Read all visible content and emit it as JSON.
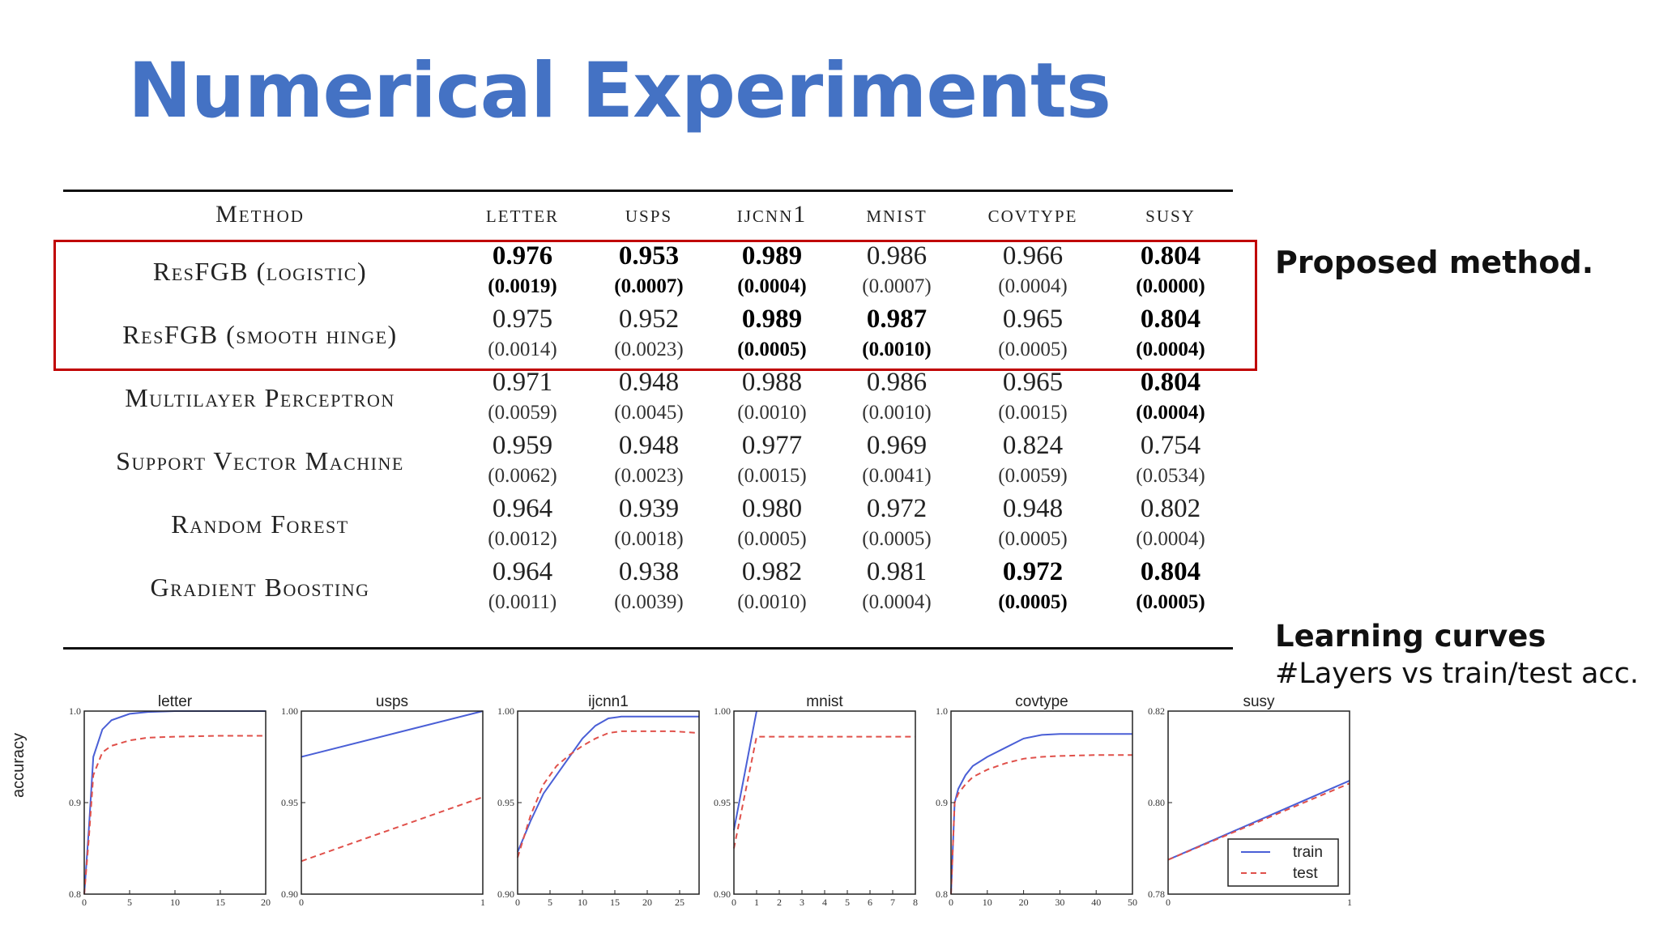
{
  "title": "Numerical Experiments",
  "table": {
    "columns": [
      "Method",
      "letter",
      "usps",
      "ijcnn1",
      "mnist",
      "covtype",
      "susy"
    ],
    "rows": [
      {
        "method": "ResFGB (logistic)",
        "cells": [
          {
            "mean": "0.976",
            "std": "(0.0019)",
            "bold": true
          },
          {
            "mean": "0.953",
            "std": "(0.0007)",
            "bold": true
          },
          {
            "mean": "0.989",
            "std": "(0.0004)",
            "bold": true
          },
          {
            "mean": "0.986",
            "std": "(0.0007)",
            "bold": false
          },
          {
            "mean": "0.966",
            "std": "(0.0004)",
            "bold": false
          },
          {
            "mean": "0.804",
            "std": "(0.0000)",
            "bold": true
          }
        ]
      },
      {
        "method": "ResFGB (smooth hinge)",
        "cells": [
          {
            "mean": "0.975",
            "std": "(0.0014)",
            "bold": false
          },
          {
            "mean": "0.952",
            "std": "(0.0023)",
            "bold": false
          },
          {
            "mean": "0.989",
            "std": "(0.0005)",
            "bold": true
          },
          {
            "mean": "0.987",
            "std": "(0.0010)",
            "bold": true
          },
          {
            "mean": "0.965",
            "std": "(0.0005)",
            "bold": false
          },
          {
            "mean": "0.804",
            "std": "(0.0004)",
            "bold": true
          }
        ]
      },
      {
        "method": "Multilayer Perceptron",
        "cells": [
          {
            "mean": "0.971",
            "std": "(0.0059)",
            "bold": false
          },
          {
            "mean": "0.948",
            "std": "(0.0045)",
            "bold": false
          },
          {
            "mean": "0.988",
            "std": "(0.0010)",
            "bold": false
          },
          {
            "mean": "0.986",
            "std": "(0.0010)",
            "bold": false
          },
          {
            "mean": "0.965",
            "std": "(0.0015)",
            "bold": false
          },
          {
            "mean": "0.804",
            "std": "(0.0004)",
            "bold": true
          }
        ]
      },
      {
        "method": "Support Vector Machine",
        "cells": [
          {
            "mean": "0.959",
            "std": "(0.0062)",
            "bold": false
          },
          {
            "mean": "0.948",
            "std": "(0.0023)",
            "bold": false
          },
          {
            "mean": "0.977",
            "std": "(0.0015)",
            "bold": false
          },
          {
            "mean": "0.969",
            "std": "(0.0041)",
            "bold": false
          },
          {
            "mean": "0.824",
            "std": "(0.0059)",
            "bold": false
          },
          {
            "mean": "0.754",
            "std": "(0.0534)",
            "bold": false
          }
        ]
      },
      {
        "method": "Random Forest",
        "cells": [
          {
            "mean": "0.964",
            "std": "(0.0012)",
            "bold": false
          },
          {
            "mean": "0.939",
            "std": "(0.0018)",
            "bold": false
          },
          {
            "mean": "0.980",
            "std": "(0.0005)",
            "bold": false
          },
          {
            "mean": "0.972",
            "std": "(0.0005)",
            "bold": false
          },
          {
            "mean": "0.948",
            "std": "(0.0005)",
            "bold": false
          },
          {
            "mean": "0.802",
            "std": "(0.0004)",
            "bold": false
          }
        ]
      },
      {
        "method": "Gradient Boosting",
        "cells": [
          {
            "mean": "0.964",
            "std": "(0.0011)",
            "bold": false
          },
          {
            "mean": "0.938",
            "std": "(0.0039)",
            "bold": false
          },
          {
            "mean": "0.982",
            "std": "(0.0010)",
            "bold": false
          },
          {
            "mean": "0.981",
            "std": "(0.0004)",
            "bold": false
          },
          {
            "mean": "0.972",
            "std": "(0.0005)",
            "bold": true
          },
          {
            "mean": "0.804",
            "std": "(0.0005)",
            "bold": true
          }
        ]
      }
    ]
  },
  "notes": {
    "proposed": "Proposed method.",
    "curves_title": "Learning curves",
    "curves_sub": "#Layers vs train/test acc."
  },
  "colors": {
    "title": "#4472c4",
    "highlight": "#c00000",
    "train": "#4a5fd6",
    "test": "#e0504a"
  },
  "chart_data": [
    {
      "type": "line",
      "title": "letter",
      "ylabel": "accuracy",
      "xlim": [
        0,
        20
      ],
      "ylim": [
        0.8,
        1.0
      ],
      "xticks": [
        "0",
        "5",
        "10",
        "15",
        "20"
      ],
      "yticks": [
        "0.8",
        "0.9",
        "1.0"
      ],
      "series": [
        {
          "name": "train",
          "x": [
            0,
            0.5,
            1,
            2,
            3,
            5,
            7,
            10,
            15,
            20
          ],
          "y": [
            0.8,
            0.87,
            0.95,
            0.98,
            0.99,
            0.997,
            0.999,
            1.0,
            1.0,
            1.0
          ]
        },
        {
          "name": "test",
          "x": [
            0,
            0.5,
            1,
            2,
            3,
            5,
            7,
            10,
            15,
            20
          ],
          "y": [
            0.8,
            0.86,
            0.93,
            0.955,
            0.962,
            0.968,
            0.971,
            0.972,
            0.973,
            0.973
          ]
        }
      ]
    },
    {
      "type": "line",
      "title": "usps",
      "xlim": [
        0,
        1
      ],
      "ylim": [
        0.9,
        1.0
      ],
      "xticks": [
        "0",
        "1"
      ],
      "yticks": [
        "0.90",
        "0.95",
        "1.00"
      ],
      "series": [
        {
          "name": "train",
          "x": [
            0,
            1
          ],
          "y": [
            0.975,
            1.0
          ]
        },
        {
          "name": "test",
          "x": [
            0,
            1
          ],
          "y": [
            0.918,
            0.953
          ]
        }
      ]
    },
    {
      "type": "line",
      "title": "ijcnn1",
      "xlim": [
        0,
        28
      ],
      "ylim": [
        0.9,
        1.0
      ],
      "xticks": [
        "0",
        "5",
        "10",
        "15",
        "20",
        "25"
      ],
      "yticks": [
        "0.90",
        "0.95",
        "1.00"
      ],
      "series": [
        {
          "name": "train",
          "x": [
            0,
            2,
            4,
            6,
            8,
            10,
            12,
            14,
            16,
            18,
            20,
            24,
            28
          ],
          "y": [
            0.923,
            0.94,
            0.955,
            0.965,
            0.975,
            0.985,
            0.992,
            0.996,
            0.997,
            0.997,
            0.997,
            0.997,
            0.997
          ]
        },
        {
          "name": "test",
          "x": [
            0,
            2,
            4,
            6,
            8,
            10,
            12,
            14,
            16,
            18,
            20,
            24,
            28
          ],
          "y": [
            0.92,
            0.943,
            0.96,
            0.97,
            0.976,
            0.981,
            0.985,
            0.988,
            0.989,
            0.989,
            0.989,
            0.989,
            0.988
          ]
        }
      ]
    },
    {
      "type": "line",
      "title": "mnist",
      "xlim": [
        0,
        8
      ],
      "ylim": [
        0.9,
        1.0
      ],
      "xticks": [
        "0",
        "1",
        "2",
        "3",
        "4",
        "5",
        "6",
        "7",
        "8"
      ],
      "yticks": [
        "0.90",
        "0.95",
        "1.00"
      ],
      "series": [
        {
          "name": "train",
          "x": [
            0,
            1
          ],
          "y": [
            0.935,
            1.0
          ]
        },
        {
          "name": "test",
          "x": [
            0,
            1,
            2,
            3,
            4,
            5,
            6,
            7,
            8
          ],
          "y": [
            0.925,
            0.986,
            0.986,
            0.986,
            0.986,
            0.986,
            0.986,
            0.986,
            0.986
          ]
        }
      ]
    },
    {
      "type": "line",
      "title": "covtype",
      "xlim": [
        0,
        50
      ],
      "ylim": [
        0.8,
        1.0
      ],
      "xticks": [
        "0",
        "10",
        "20",
        "30",
        "40",
        "50"
      ],
      "yticks": [
        "0.8",
        "0.9",
        "1.0"
      ],
      "series": [
        {
          "name": "train",
          "x": [
            0,
            1,
            2,
            4,
            6,
            10,
            15,
            20,
            25,
            30,
            40,
            50
          ],
          "y": [
            0.8,
            0.9,
            0.915,
            0.93,
            0.94,
            0.95,
            0.96,
            0.97,
            0.974,
            0.975,
            0.975,
            0.975
          ]
        },
        {
          "name": "test",
          "x": [
            0,
            1,
            2,
            4,
            6,
            10,
            15,
            20,
            25,
            30,
            40,
            50
          ],
          "y": [
            0.8,
            0.9,
            0.91,
            0.92,
            0.928,
            0.936,
            0.943,
            0.948,
            0.95,
            0.951,
            0.952,
            0.952
          ]
        }
      ]
    },
    {
      "type": "line",
      "title": "susy",
      "xlim": [
        0,
        1
      ],
      "ylim": [
        0.78,
        0.82
      ],
      "xticks": [
        "0",
        "1"
      ],
      "yticks": [
        "0.78",
        "0.80",
        "0.82"
      ],
      "legend": {
        "location": "lower right",
        "entries": [
          "train",
          "test"
        ]
      },
      "series": [
        {
          "name": "train",
          "x": [
            0,
            1
          ],
          "y": [
            0.7875,
            0.8048
          ]
        },
        {
          "name": "test",
          "x": [
            0,
            1
          ],
          "y": [
            0.7875,
            0.8042
          ]
        }
      ]
    }
  ]
}
